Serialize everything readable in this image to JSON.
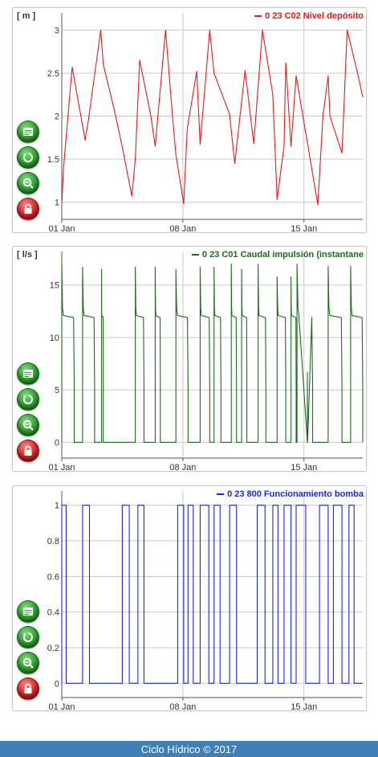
{
  "colors": {
    "red": "#e31b1b",
    "green": "#1d6b1d",
    "blue": "#1c28d8",
    "footer_bg": "#3f7fb7"
  },
  "toolbar_icons": [
    "csv-export-icon",
    "reset-zoom-icon",
    "zoom-out-icon",
    "lock-icon"
  ],
  "footer": {
    "text": "Ciclo Hídrico © 2017"
  },
  "chart_data": [
    {
      "type": "line",
      "unit_label": "[ m ]",
      "series": [
        {
          "name": "0 23 C02 Nivel depósito",
          "color": "#e31b1b",
          "x": [
            0,
            0.1,
            0.6,
            1.35,
            1.55,
            2.25,
            2.4,
            3,
            3.5,
            4.05,
            4.25,
            4.5,
            5.15,
            5.4,
            6,
            6.4,
            6.6,
            7.05,
            7.25,
            7.8,
            8,
            8.55,
            8.8,
            9.7,
            10,
            10.6,
            11.1,
            11.2,
            11.6,
            12.2,
            12.45,
            12.85,
            12.95,
            13.25,
            13.55,
            14.8,
            15.1,
            15.4,
            15.5,
            16.2,
            16.5,
            17.1,
            17.4
          ],
          "y": [
            0.98,
            1.4,
            2.57,
            1.72,
            1.97,
            3.0,
            2.6,
            2.1,
            1.64,
            1.07,
            1.5,
            2.65,
            2.0,
            1.65,
            3.0,
            2.0,
            1.55,
            0.98,
            1.85,
            2.52,
            1.67,
            3.0,
            2.5,
            2.02,
            1.45,
            2.53,
            1.68,
            1.95,
            3.0,
            2.25,
            1.03,
            1.65,
            2.62,
            1.65,
            2.47,
            0.97,
            2.0,
            2.47,
            2.0,
            1.57,
            3.0,
            2.5,
            2.22
          ]
        }
      ],
      "xlim": [
        0,
        17.4
      ],
      "ylim": [
        0.8,
        3.2
      ],
      "yticks": [
        1,
        1.5,
        2,
        2.5,
        3
      ],
      "xticks": [
        {
          "value": 0,
          "label": "01 Jan"
        },
        {
          "value": 7,
          "label": "08 Jan"
        },
        {
          "value": 14,
          "label": "15 Jan"
        }
      ],
      "grid": true,
      "legend_position": "top-right"
    },
    {
      "type": "line",
      "unit_label": "[ l/s ]",
      "series": [
        {
          "name": "0 23 C01 Caudal impulsión (instantane",
          "color": "#1d6b1d"
        }
      ],
      "pulses": [
        {
          "start": 0.0,
          "end": 0.72,
          "peak": 17.0
        },
        {
          "start": 2.3,
          "end": 2.4,
          "peak": 16.5
        },
        {
          "start": 6.6,
          "end": 7.3,
          "peak": 16.5
        },
        {
          "start": 9.8,
          "end": 10.1,
          "peak": 17.0
        },
        {
          "start": 10.4,
          "end": 10.7,
          "peak": 16.5
        },
        {
          "start": 11.35,
          "end": 11.8,
          "peak": 17.0
        },
        {
          "start": 12.45,
          "end": 12.95,
          "peak": 15.8
        },
        {
          "start": 13.25,
          "end": 13.55,
          "peak": 15.8
        },
        {
          "start": 13.6,
          "end": 14.5,
          "peak": 17.0
        },
        {
          "start": 15.4,
          "end": 16.2,
          "peak": 16.8
        },
        {
          "start": 16.7,
          "end": 17.4,
          "peak": 16.8
        }
      ],
      "extra_pulses": [
        {
          "start": 4.25,
          "end": 4.75,
          "peak": 16.7
        },
        {
          "start": 5.4,
          "end": 5.7,
          "peak": 16.7
        },
        {
          "start": 8.0,
          "end": 8.55,
          "peak": 16.7
        },
        {
          "start": 8.8,
          "end": 9.2,
          "peak": 16.7
        },
        {
          "start": 1.2,
          "end": 1.9,
          "peak": 16.7
        }
      ],
      "spikes": [
        {
          "x": 14.2,
          "peak": 6.7
        }
      ],
      "xlim": [
        0,
        17.4
      ],
      "ylim": [
        -1.5,
        18.2
      ],
      "yticks": [
        0,
        5,
        10,
        15
      ],
      "xticks": [
        {
          "value": 0,
          "label": "01 Jan"
        },
        {
          "value": 7,
          "label": "08 Jan"
        },
        {
          "value": 14,
          "label": "15 Jan"
        }
      ],
      "grid": true,
      "legend_position": "top-right"
    },
    {
      "type": "line",
      "step": true,
      "series": [
        {
          "name": "0 23 800 Funcionamiento bomba",
          "color": "#1c28d8"
        }
      ],
      "on_intervals": [
        [
          0.0,
          0.25
        ],
        [
          1.2,
          1.6
        ],
        [
          3.5,
          3.9
        ],
        [
          4.4,
          4.75
        ],
        [
          6.7,
          7.05
        ],
        [
          7.3,
          7.6
        ],
        [
          8.0,
          8.5
        ],
        [
          8.8,
          9.15
        ],
        [
          9.7,
          10.1
        ],
        [
          11.3,
          11.75
        ],
        [
          12.2,
          12.5
        ],
        [
          12.85,
          13.25
        ],
        [
          13.55,
          14.1
        ],
        [
          14.9,
          15.4
        ],
        [
          15.7,
          16.2
        ],
        [
          16.6,
          16.9
        ]
      ],
      "xlim": [
        0,
        17.4
      ],
      "ylim": [
        -0.08,
        1.08
      ],
      "yticks": [
        0,
        0.2,
        0.4,
        0.6,
        0.8,
        1
      ],
      "xticks": [
        {
          "value": 0,
          "label": "01 Jan"
        },
        {
          "value": 7,
          "label": "08 Jan"
        },
        {
          "value": 14,
          "label": "15 Jan"
        }
      ],
      "grid": true,
      "legend_position": "top-right"
    }
  ]
}
